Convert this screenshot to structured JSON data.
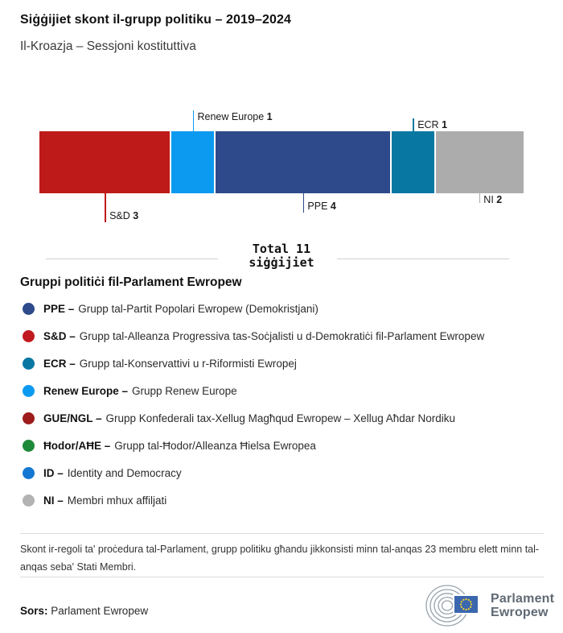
{
  "header": {
    "title": "Siġġijiet skont il-grupp politiku – 2019–2024",
    "subtitle": "Il-Kroazja – Sessjoni kostituttiva"
  },
  "chart_data": {
    "type": "bar",
    "variant": "stacked-horizontal-single-bar",
    "title": "Siġġijiet skont il-grupp politiku – 2019–2024",
    "subtitle": "Il-Kroazja – Sessjoni kostituttiva",
    "total_seats": 11,
    "total_caption": "Total 11 siġġijiet",
    "categories": [
      "S&D",
      "Renew Europe",
      "PPE",
      "ECR",
      "NI"
    ],
    "values": [
      3,
      1,
      4,
      1,
      2
    ],
    "segments": [
      {
        "group": "S&D",
        "seats": 3,
        "color": "#be1a1a",
        "label_side": "below"
      },
      {
        "group": "Renew Europe",
        "seats": 1,
        "color": "#0c9af0",
        "label_side": "above"
      },
      {
        "group": "PPE",
        "seats": 4,
        "color": "#2e4a8b",
        "label_side": "below"
      },
      {
        "group": "ECR",
        "seats": 1,
        "color": "#0878a3",
        "label_side": "above"
      },
      {
        "group": "NI",
        "seats": 2,
        "color": "#acacac",
        "label_side": "below"
      }
    ]
  },
  "total": {
    "line1": "Total 11",
    "line2": "siġġijiet"
  },
  "legend": {
    "heading": "Gruppi politiċi fil-Parlament Ewropew",
    "items": [
      {
        "abbr": "PPE –",
        "desc": "Grupp tal-Partit Popolari Ewropew (Demokristjani)",
        "color": "#2e4a8b"
      },
      {
        "abbr": "S&D –",
        "desc": "Grupp tal-Alleanza Progressiva tas-Soċjalisti u d-Demokratiċi fil-Parlament Ewropew",
        "color": "#c01a20"
      },
      {
        "abbr": "ECR –",
        "desc": "Grupp tal-Konservattivi u r-Riformisti Ewropej",
        "color": "#0878a3"
      },
      {
        "abbr": "Renew Europe –",
        "desc": "Grupp Renew Europe",
        "color": "#0c9af0"
      },
      {
        "abbr": "GUE/NGL –",
        "desc": "Grupp Konfederali tax-Xellug Magħqud Ewropew – Xellug Aħdar Nordiku",
        "color": "#9e1b1b"
      },
      {
        "abbr": "Ħodor/AĦE –",
        "desc": "Grupp tal-Ħodor/Alleanza Ħielsa Ewropea",
        "color": "#1e8a39"
      },
      {
        "abbr": "ID –",
        "desc": "Identity and Democracy",
        "color": "#1478d2"
      },
      {
        "abbr": "NI –",
        "desc": "Membri mhux affiljati",
        "color": "#b3b3b3"
      }
    ]
  },
  "footnote": "Skont ir-regoli ta' proċedura tal-Parlament, grupp politiku għandu jikkonsisti minn tal-anqas 23 membru elett minn tal-anqas seba' Stati Membri.",
  "source": {
    "label": "Sors:",
    "value": "Parlament Ewropew"
  },
  "logo": {
    "line1": "Parlament",
    "line2": "Ewropew",
    "flag_color": "#3b67ae",
    "star_color": "#f3d02a",
    "arc_color": "#98a2ab",
    "text_color": "#5f6a74"
  }
}
